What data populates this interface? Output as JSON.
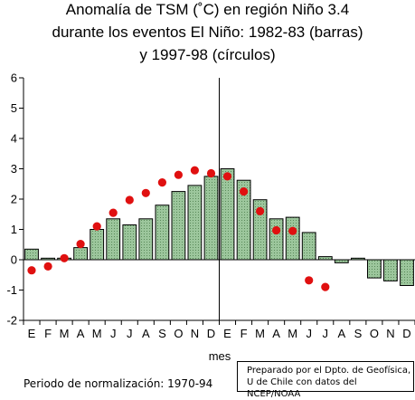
{
  "title_lines": [
    "Anomalía de TSM (˚C) en región Niño 3.4",
    "durante los eventos El Niño: 1982-83 (barras)",
    "y 1997-98 (círculos)"
  ],
  "footnote": "Periodo de normalización: 1970-94",
  "credit": [
    "Preparado por el Dpto. de Geofísica,",
    "U de Chile con datos del NCEP/NOAA"
  ],
  "colors": {
    "bar_fill": "#9cc69c",
    "dot_fill": "#e01010",
    "axis": "#000000"
  },
  "chart_data": {
    "type": "bar",
    "xlabel": "mes",
    "ylabel": "",
    "ylim": [
      -2,
      6
    ],
    "yticks": [
      -2,
      -1,
      0,
      1,
      2,
      3,
      4,
      5,
      6
    ],
    "categories": [
      "E",
      "F",
      "M",
      "A",
      "M",
      "J",
      "J",
      "A",
      "S",
      "O",
      "N",
      "D",
      "E",
      "F",
      "M",
      "A",
      "M",
      "J",
      "J",
      "A",
      "S",
      "O",
      "N",
      "D"
    ],
    "series": [
      {
        "style": "bars",
        "values": [
          0.35,
          0.05,
          0.05,
          0.4,
          1.0,
          1.35,
          1.15,
          1.35,
          1.8,
          2.25,
          2.45,
          2.75,
          3.0,
          2.62,
          1.98,
          1.35,
          1.4,
          0.9,
          0.1,
          -0.1,
          0.05,
          -0.6,
          -0.7,
          -0.85
        ]
      },
      {
        "style": "circles",
        "values": [
          -0.35,
          -0.22,
          0.05,
          0.52,
          1.1,
          1.55,
          1.97,
          2.2,
          2.55,
          2.8,
          2.95,
          2.85,
          2.75,
          2.25,
          1.6,
          0.97,
          0.95,
          -0.68,
          -0.9,
          null,
          null,
          null,
          null,
          null
        ]
      }
    ],
    "divider_after_index": 11,
    "grid": false,
    "legend": "none"
  }
}
